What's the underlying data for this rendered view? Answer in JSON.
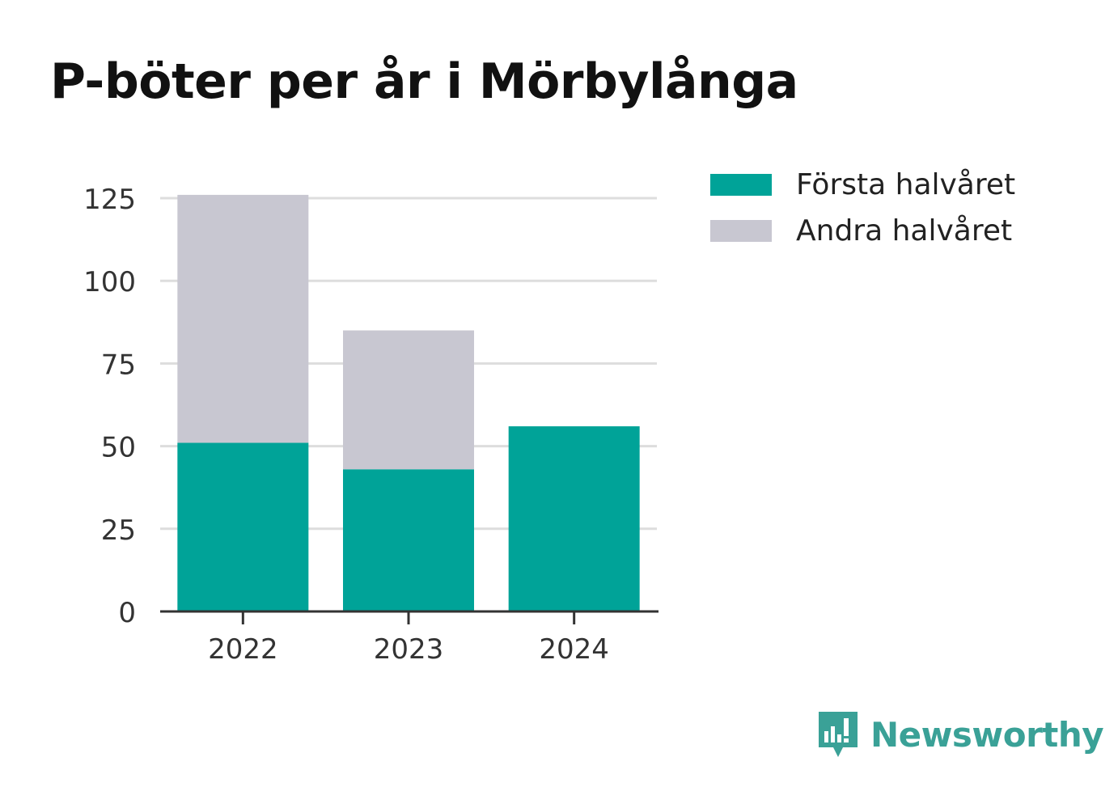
{
  "chart_data": {
    "type": "bar",
    "stacked": true,
    "title": "P-böter per år i Mörbylånga",
    "categories": [
      "2022",
      "2023",
      "2024"
    ],
    "series": [
      {
        "name": "Första halvåret",
        "color": "#00a398",
        "values": [
          51,
          43,
          56
        ]
      },
      {
        "name": "Andra halvåret",
        "color": "#c8c7d1",
        "values": [
          75,
          42,
          0
        ]
      }
    ],
    "yticks": [
      0,
      25,
      50,
      75,
      100,
      125
    ],
    "ylim": [
      0,
      125
    ],
    "xlabel": "",
    "ylabel": "",
    "grid": true,
    "legend": "top-right"
  },
  "brand": {
    "name": "Newsworthy",
    "icon": "bar-chart-speech-bubble-icon",
    "color": "#3aa197"
  }
}
